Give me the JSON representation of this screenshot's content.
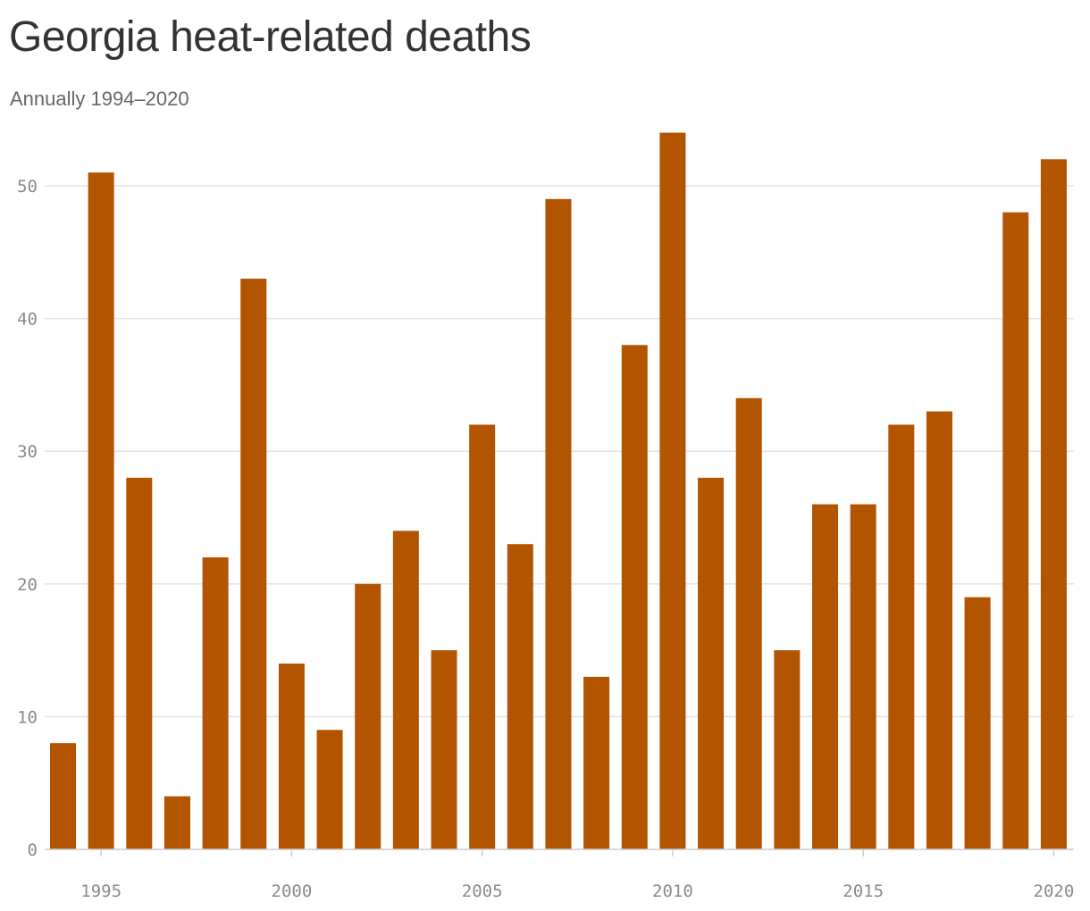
{
  "chart_data": {
    "type": "bar",
    "title": "Georgia heat-related deaths",
    "subtitle": "Annually 1994–2020",
    "xlabel": "",
    "ylabel": "",
    "categories": [
      1994,
      1995,
      1996,
      1997,
      1998,
      1999,
      2000,
      2001,
      2002,
      2003,
      2004,
      2005,
      2006,
      2007,
      2008,
      2009,
      2010,
      2011,
      2012,
      2013,
      2014,
      2015,
      2016,
      2017,
      2018,
      2019,
      2020
    ],
    "values": [
      8,
      51,
      28,
      4,
      22,
      43,
      14,
      9,
      20,
      24,
      15,
      32,
      23,
      49,
      13,
      38,
      54,
      28,
      34,
      15,
      26,
      26,
      32,
      33,
      19,
      48,
      52
    ],
    "ylim": [
      0,
      54
    ],
    "yticks": [
      0,
      10,
      20,
      30,
      40,
      50
    ],
    "xticks": [
      1995,
      2000,
      2005,
      2010,
      2015,
      2020
    ],
    "grid": true,
    "legend": "none",
    "bar_color": "#b35400",
    "grid_color": "#e3e3e3",
    "axis_color": "#cccccc"
  }
}
